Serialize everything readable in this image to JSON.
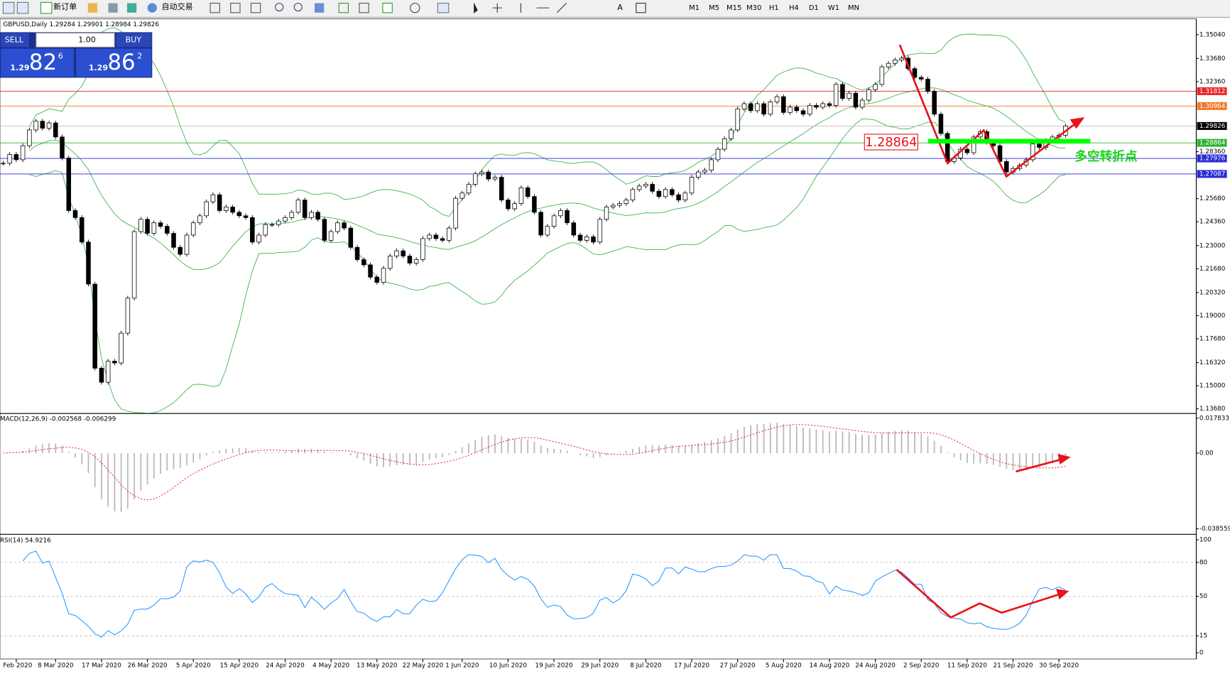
{
  "toolbar": {
    "buttons": [
      "新订单",
      "自动交易"
    ],
    "timeframes": [
      "M1",
      "M5",
      "M15",
      "M30",
      "H1",
      "H4",
      "D1",
      "W1",
      "MN"
    ]
  },
  "trade_panel": {
    "sell": "SELL",
    "buy": "BUY",
    "lots": "1.00",
    "sell_price": {
      "big": "1.29",
      "pips": "82",
      "point": "6"
    },
    "buy_price": {
      "big": "1.29",
      "pips": "86",
      "point": "2"
    }
  },
  "chart_data": [
    {
      "type": "candlestick",
      "header": "GBPUSD,Daily  1.29284 1.29901 1.28984 1.29826",
      "closes": [
        1.277,
        1.282,
        1.279,
        1.287,
        1.296,
        1.301,
        1.297,
        1.3,
        1.292,
        1.28,
        1.25,
        1.246,
        1.232,
        1.208,
        1.16,
        1.152,
        1.164,
        1.163,
        1.18,
        1.2,
        1.238,
        1.245,
        1.237,
        1.243,
        1.241,
        1.237,
        1.229,
        1.225,
        1.236,
        1.243,
        1.247,
        1.255,
        1.259,
        1.25,
        1.252,
        1.249,
        1.247,
        1.246,
        1.232,
        1.236,
        1.242,
        1.242,
        1.244,
        1.246,
        1.249,
        1.256,
        1.246,
        1.249,
        1.245,
        1.233,
        1.238,
        1.243,
        1.24,
        1.229,
        1.222,
        1.219,
        1.212,
        1.209,
        1.217,
        1.224,
        1.227,
        1.224,
        1.22,
        1.222,
        1.234,
        1.236,
        1.234,
        1.233,
        1.24,
        1.257,
        1.26,
        1.265,
        1.271,
        1.272,
        1.268,
        1.269,
        1.256,
        1.251,
        1.254,
        1.263,
        1.258,
        1.249,
        1.236,
        1.241,
        1.247,
        1.25,
        1.243,
        1.236,
        1.233,
        1.235,
        1.232,
        1.245,
        1.252,
        1.253,
        1.254,
        1.256,
        1.262,
        1.264,
        1.265,
        1.261,
        1.258,
        1.262,
        1.259,
        1.256,
        1.26,
        1.269,
        1.272,
        1.273,
        1.279,
        1.285,
        1.291,
        1.296,
        1.308,
        1.311,
        1.307,
        1.311,
        1.305,
        1.312,
        1.315,
        1.306,
        1.309,
        1.307,
        1.305,
        1.31,
        1.309,
        1.311,
        1.31,
        1.322,
        1.314,
        1.317,
        1.309,
        1.313,
        1.319,
        1.322,
        1.332,
        1.334,
        1.336,
        1.337,
        1.331,
        1.326,
        1.325,
        1.318,
        1.305,
        1.294,
        1.278,
        1.28,
        1.285,
        1.283,
        1.292,
        1.295,
        1.289,
        1.287,
        1.278,
        1.272,
        1.274,
        1.276,
        1.279,
        1.288,
        1.286,
        1.29,
        1.292,
        1.293,
        1.29826
      ],
      "ylim": [
        1.1355,
        1.3594
      ],
      "yticks": [
        {
          "value": 1.3504,
          "label": "1.35040"
        },
        {
          "value": 1.3368,
          "label": "1.33680"
        },
        {
          "value": 1.3236,
          "label": "1.32360"
        },
        {
          "value": 1.2836,
          "label": "1.28360"
        },
        {
          "value": 1.2568,
          "label": "1.25680"
        },
        {
          "value": 1.2436,
          "label": "1.24360"
        },
        {
          "value": 1.23,
          "label": "1.23000"
        },
        {
          "value": 1.2168,
          "label": "1.21680"
        },
        {
          "value": 1.2032,
          "label": "1.20320"
        },
        {
          "value": 1.19,
          "label": "1.19000"
        },
        {
          "value": 1.1768,
          "label": "1.17680"
        },
        {
          "value": 1.1632,
          "label": "1.16320"
        },
        {
          "value": 1.15,
          "label": "1.15000"
        },
        {
          "value": 1.1368,
          "label": "1.13680"
        }
      ],
      "price_lines": [
        {
          "value": 1.31812,
          "color": "#e8262b"
        },
        {
          "value": 1.30964,
          "color": "#f07a2a"
        },
        {
          "value": 1.29826,
          "color": "#c0c0c0"
        },
        {
          "value": 1.28864,
          "color": "#2fb52f"
        },
        {
          "value": 1.27976,
          "color": "#2a2ad8"
        },
        {
          "value": 1.27087,
          "color": "#2a2ad8"
        }
      ],
      "xticks": [
        {
          "value": 2,
          "label": "Feb 2020"
        },
        {
          "value": 8,
          "label": "8 Mar 2020"
        },
        {
          "value": 15,
          "label": "17 Mar 2020"
        },
        {
          "value": 22,
          "label": "26 Mar 2020"
        },
        {
          "value": 29,
          "label": "5 Apr 2020"
        },
        {
          "value": 36,
          "label": "15 Apr 2020"
        },
        {
          "value": 43,
          "label": "24 Apr 2020"
        },
        {
          "value": 50,
          "label": "4 May 2020"
        },
        {
          "value": 57,
          "label": "13 May 2020"
        },
        {
          "value": 64,
          "label": "22 May 2020"
        },
        {
          "value": 70,
          "label": "1 Jun 2020"
        },
        {
          "value": 77,
          "label": "10 Jun 2020"
        },
        {
          "value": 84,
          "label": "19 Jun 2020"
        },
        {
          "value": 91,
          "label": "29 Jun 2020"
        },
        {
          "value": 98,
          "label": "8 Jul 2020"
        },
        {
          "value": 105,
          "label": "17 Jul 2020"
        },
        {
          "value": 112,
          "label": "27 Jul 2020"
        },
        {
          "value": 119,
          "label": "5 Aug 2020"
        },
        {
          "value": 126,
          "label": "14 Aug 2020"
        },
        {
          "value": 133,
          "label": "24 Aug 2020"
        },
        {
          "value": 140,
          "label": "2 Sep 2020"
        },
        {
          "value": 147,
          "label": "11 Sep 2020"
        },
        {
          "value": 154,
          "label": "21 Sep 2020"
        },
        {
          "value": 161,
          "label": "30 Sep 2020"
        }
      ],
      "annotations": {
        "price_box": "1.28864",
        "note": "多空转折点"
      },
      "band_color": "#3cb44b"
    },
    {
      "type": "macd",
      "header": "MACD(12,26,9) -0.002568 -0.006299",
      "ylim": [
        -0.038559,
        0.017833
      ],
      "yticks": [
        0.017833,
        {
          "value": 0,
          "label": "0.00"
        },
        -0.038559
      ]
    },
    {
      "type": "rsi",
      "header": "RSI(14) 54.9216",
      "ylim": [
        0,
        100
      ],
      "yticks": [
        100,
        80,
        50,
        15,
        0
      ],
      "levels": [
        80,
        50,
        15
      ]
    }
  ]
}
